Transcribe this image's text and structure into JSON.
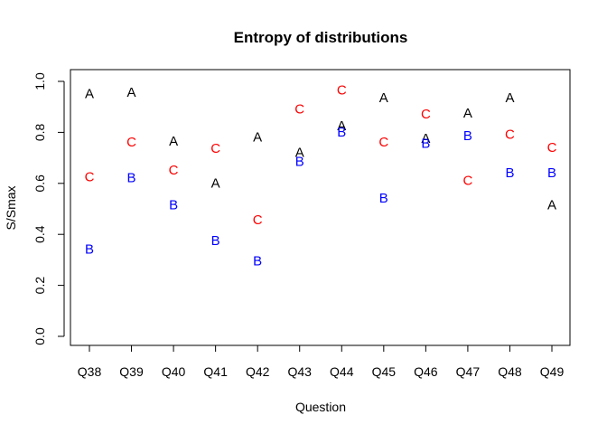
{
  "chart_data": {
    "type": "scatter",
    "title": "Entropy of distributions",
    "xlabel": "Question",
    "ylabel": "S/Smax",
    "categories": [
      "Q38",
      "Q39",
      "Q40",
      "Q41",
      "Q42",
      "Q43",
      "Q44",
      "Q45",
      "Q46",
      "Q47",
      "Q48",
      "Q49"
    ],
    "ylim": [
      0,
      1
    ],
    "yticks": [
      "0.0",
      "0.2",
      "0.4",
      "0.6",
      "0.8",
      "1.0"
    ],
    "grid": false,
    "series": [
      {
        "name": "A",
        "color": "#000000",
        "values": [
          0.95,
          0.955,
          0.765,
          0.6,
          0.78,
          0.72,
          0.825,
          0.935,
          0.775,
          0.875,
          0.935,
          0.515
        ]
      },
      {
        "name": "C",
        "color": "#ff0000",
        "values": [
          0.625,
          0.76,
          0.65,
          0.735,
          0.455,
          0.89,
          0.965,
          0.76,
          0.87,
          0.61,
          0.79,
          0.74
        ]
      },
      {
        "name": "B",
        "color": "#0000ff",
        "values": [
          0.34,
          0.62,
          0.515,
          0.375,
          0.295,
          0.685,
          0.8,
          0.54,
          0.755,
          0.785,
          0.64,
          0.64
        ]
      }
    ]
  }
}
